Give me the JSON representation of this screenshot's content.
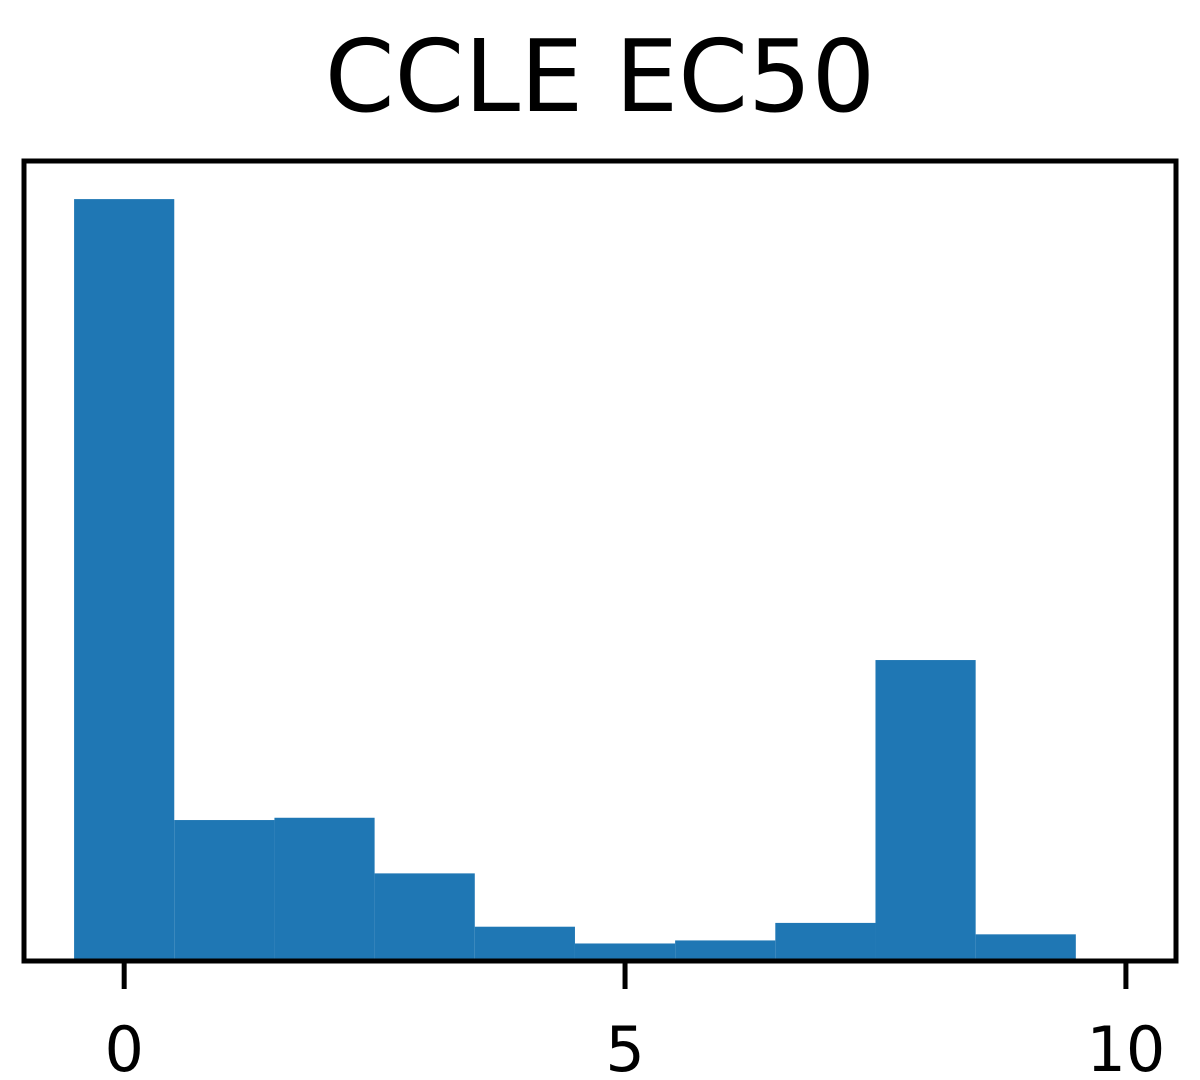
{
  "chart_data": {
    "type": "bar",
    "title": "CCLE EC50",
    "xlabel": "",
    "ylabel": "",
    "bins": [
      {
        "x0": -0.5,
        "x1": 0.5,
        "value": 100
      },
      {
        "x0": 0.5,
        "x1": 1.5,
        "value": 18.5
      },
      {
        "x0": 1.5,
        "x1": 2.5,
        "value": 18.8
      },
      {
        "x0": 2.5,
        "x1": 3.5,
        "value": 11.5
      },
      {
        "x0": 3.5,
        "x1": 4.5,
        "value": 4.5
      },
      {
        "x0": 4.5,
        "x1": 5.5,
        "value": 2.3
      },
      {
        "x0": 5.5,
        "x1": 6.5,
        "value": 2.7
      },
      {
        "x0": 6.5,
        "x1": 7.5,
        "value": 5.0
      },
      {
        "x0": 7.5,
        "x1": 8.5,
        "value": 39.5
      },
      {
        "x0": 8.5,
        "x1": 9.5,
        "value": 3.5
      },
      {
        "x0": 9.5,
        "x1": 10.5,
        "value": 0
      }
    ],
    "xlim": [
      -1,
      10.5
    ],
    "ylim": [
      0,
      105
    ],
    "xticks": [
      0,
      5,
      10
    ],
    "xtick_labels": [
      "0",
      "5",
      "10"
    ],
    "yticks_visible": false,
    "grid": false,
    "bar_color": "#1f77b4"
  }
}
